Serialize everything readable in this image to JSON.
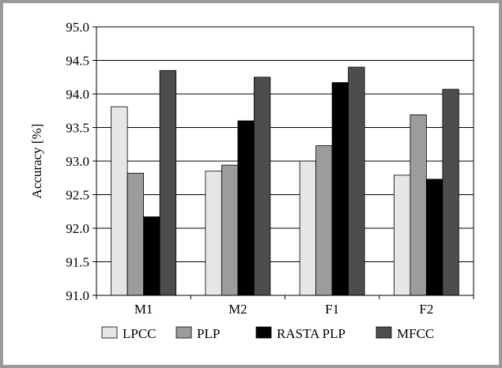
{
  "chart_data": {
    "type": "bar",
    "title": "",
    "xlabel": "",
    "ylabel": "Accuracy [%]",
    "ylim": [
      91.0,
      95.0
    ],
    "yticks": [
      "91.0",
      "91.5",
      "92.0",
      "92.5",
      "93.0",
      "93.5",
      "94.0",
      "94.5",
      "95.0"
    ],
    "categories": [
      "M1",
      "M2",
      "F1",
      "F2"
    ],
    "series": [
      {
        "name": "LPCC",
        "color": "#e6e6e6",
        "values": [
          93.81,
          92.85,
          93.0,
          92.79
        ]
      },
      {
        "name": "PLP",
        "color": "#9c9c9c",
        "values": [
          92.82,
          92.94,
          93.23,
          93.69
        ]
      },
      {
        "name": "RASTA PLP",
        "color": "#000000",
        "values": [
          92.17,
          93.6,
          94.17,
          92.73
        ]
      },
      {
        "name": "MFCC",
        "color": "#4d4d4d",
        "values": [
          94.35,
          94.25,
          94.4,
          94.07
        ]
      }
    ],
    "grid": true,
    "legend": "bottom"
  }
}
